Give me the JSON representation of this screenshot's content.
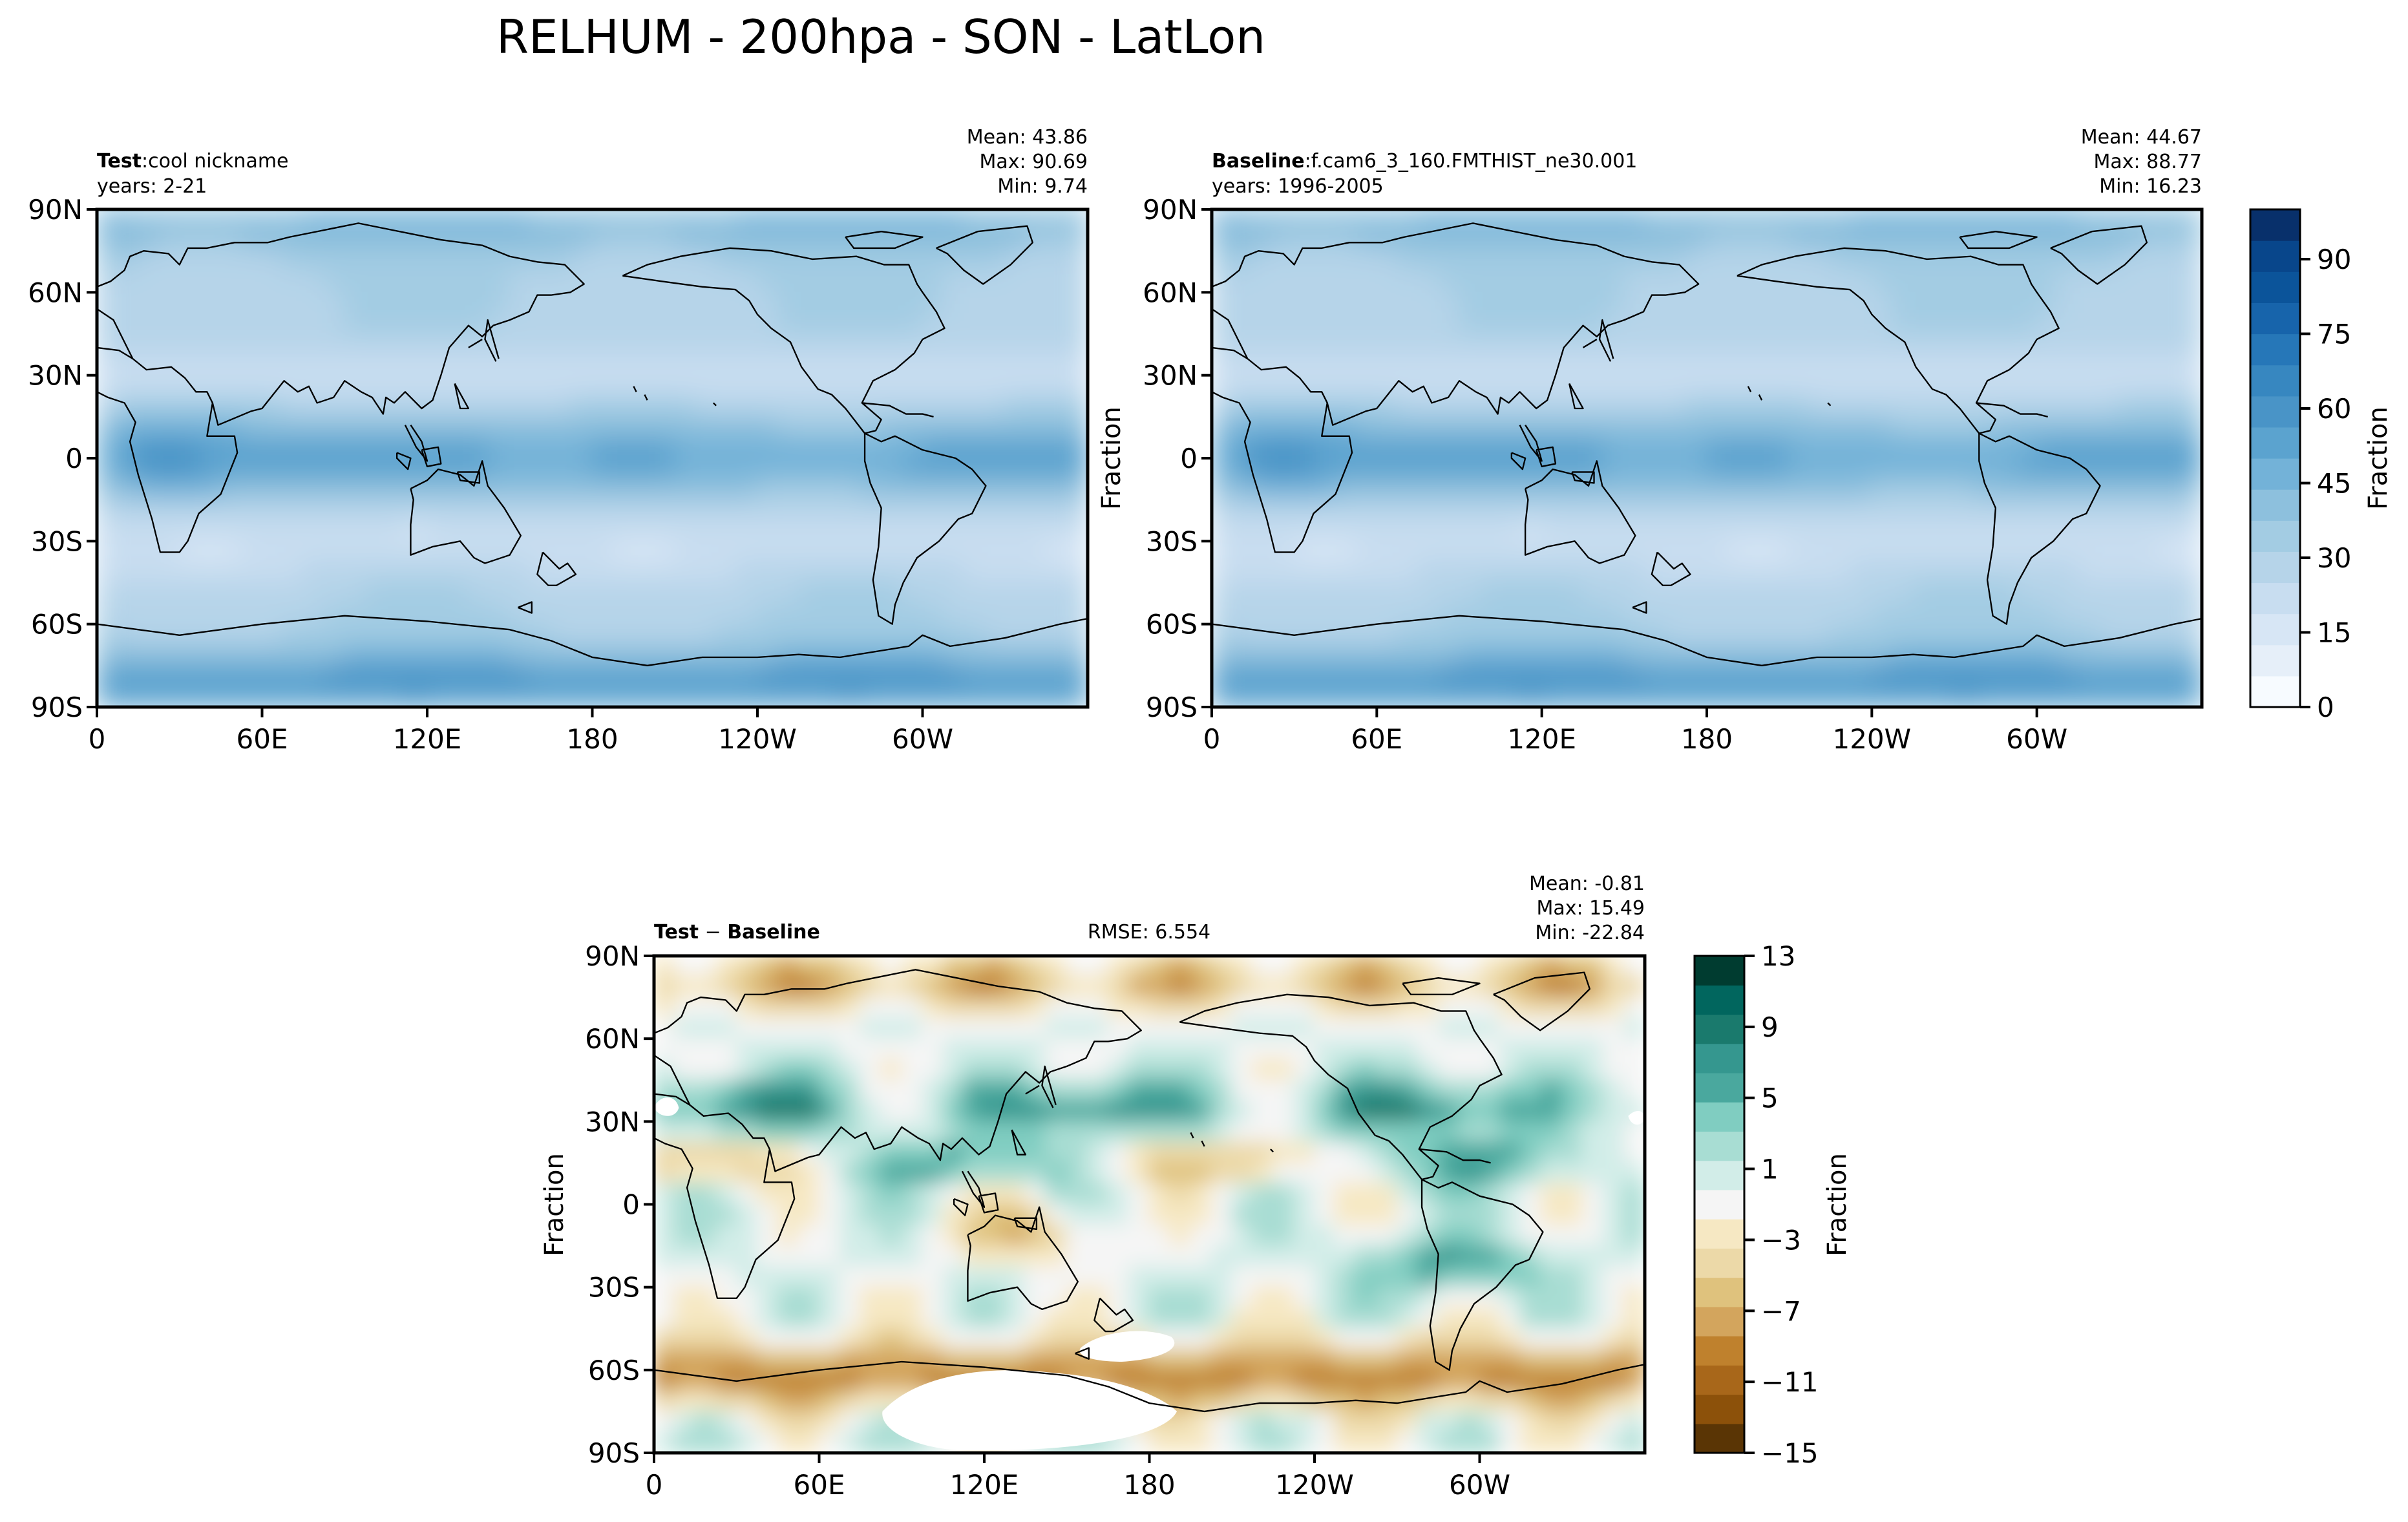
{
  "figure_title": "RELHUM - 200hpa - SON - LatLon",
  "colors": {
    "seq_palette": [
      "#f7fbff",
      "#e6eff9",
      "#d7e6f5",
      "#c8ddf0",
      "#b6d4e9",
      "#a3cce3",
      "#8dc0dd",
      "#73b2d8",
      "#5ba3cf",
      "#4994c7",
      "#3787c0",
      "#2677b8",
      "#1764ab",
      "#0b549a",
      "#08468b",
      "#08306b"
    ],
    "div_palette": [
      "#5a3505",
      "#8c510a",
      "#a8671a",
      "#bf812d",
      "#d3a55d",
      "#dfc27d",
      "#ecd9a8",
      "#f6e8c3",
      "#f5f5f5",
      "#d2ede8",
      "#a8ddd3",
      "#80cdc1",
      "#4aa89e",
      "#35978f",
      "#1a7a6d",
      "#01665e",
      "#003c30"
    ],
    "frame": "#000000",
    "coastline": "#000000",
    "nodata": "#ffffff"
  },
  "chart_data": [
    {
      "id": "test",
      "type": "heatmap",
      "label": "Test",
      "label_sep": ":",
      "name": "cool nickname",
      "years": "years: 2-21",
      "stats": [
        "Mean: 43.86",
        "Max: 90.69",
        "Min:  9.74"
      ],
      "xlabel": "",
      "ylabel": "",
      "x_ticks": [
        "0",
        "60E",
        "120E",
        "180",
        "120W",
        "60W"
      ],
      "y_ticks": [
        "90N",
        "60N",
        "30N",
        "0",
        "30S",
        "60S",
        "90S"
      ],
      "xlim": [
        0,
        360
      ],
      "ylim": [
        -90,
        90
      ],
      "colormap": "seq",
      "value_range": [
        0,
        100
      ]
    },
    {
      "id": "baseline",
      "type": "heatmap",
      "label": "Baseline",
      "label_sep": ":",
      "name": "f.cam6_3_160.FMTHIST_ne30.001",
      "years": "years: 1996-2005",
      "stats": [
        "Mean: 44.67",
        "Max: 88.77",
        "Min: 16.23"
      ],
      "xlabel": "",
      "ylabel": "Fraction",
      "x_ticks": [
        "0",
        "60E",
        "120E",
        "180",
        "120W",
        "60W"
      ],
      "y_ticks": [
        "90N",
        "60N",
        "30N",
        "0",
        "30S",
        "60S",
        "90S"
      ],
      "xlim": [
        0,
        360
      ],
      "ylim": [
        -90,
        90
      ],
      "colormap": "seq",
      "value_range": [
        0,
        100
      ],
      "colorbar": {
        "label": "Fraction",
        "ticks": [
          "0",
          "15",
          "30",
          "45",
          "60",
          "75",
          "90"
        ],
        "tick_values": [
          0,
          15,
          30,
          45,
          60,
          75,
          90
        ],
        "range": [
          0,
          100
        ]
      }
    },
    {
      "id": "diff",
      "type": "heatmap",
      "label_parts": [
        "Test",
        " − ",
        "Baseline"
      ],
      "rmse": "RMSE: 6.554",
      "stats": [
        "Mean: -0.81",
        "Max: 15.49",
        "Min: -22.84"
      ],
      "xlabel": "",
      "ylabel": "Fraction",
      "x_ticks": [
        "0",
        "60E",
        "120E",
        "180",
        "120W",
        "60W"
      ],
      "y_ticks": [
        "90N",
        "60N",
        "30N",
        "0",
        "30S",
        "60S",
        "90S"
      ],
      "xlim": [
        0,
        360
      ],
      "ylim": [
        -90,
        90
      ],
      "colormap": "div",
      "value_range": [
        -15,
        13
      ],
      "colorbar": {
        "label": "Fraction",
        "ticks": [
          "13",
          "9",
          "5",
          "1",
          "−3",
          "−7",
          "−11",
          "−15"
        ],
        "tick_values": [
          13,
          9,
          5,
          1,
          -3,
          -7,
          -11,
          -15
        ],
        "range": [
          -15,
          13
        ]
      }
    }
  ]
}
